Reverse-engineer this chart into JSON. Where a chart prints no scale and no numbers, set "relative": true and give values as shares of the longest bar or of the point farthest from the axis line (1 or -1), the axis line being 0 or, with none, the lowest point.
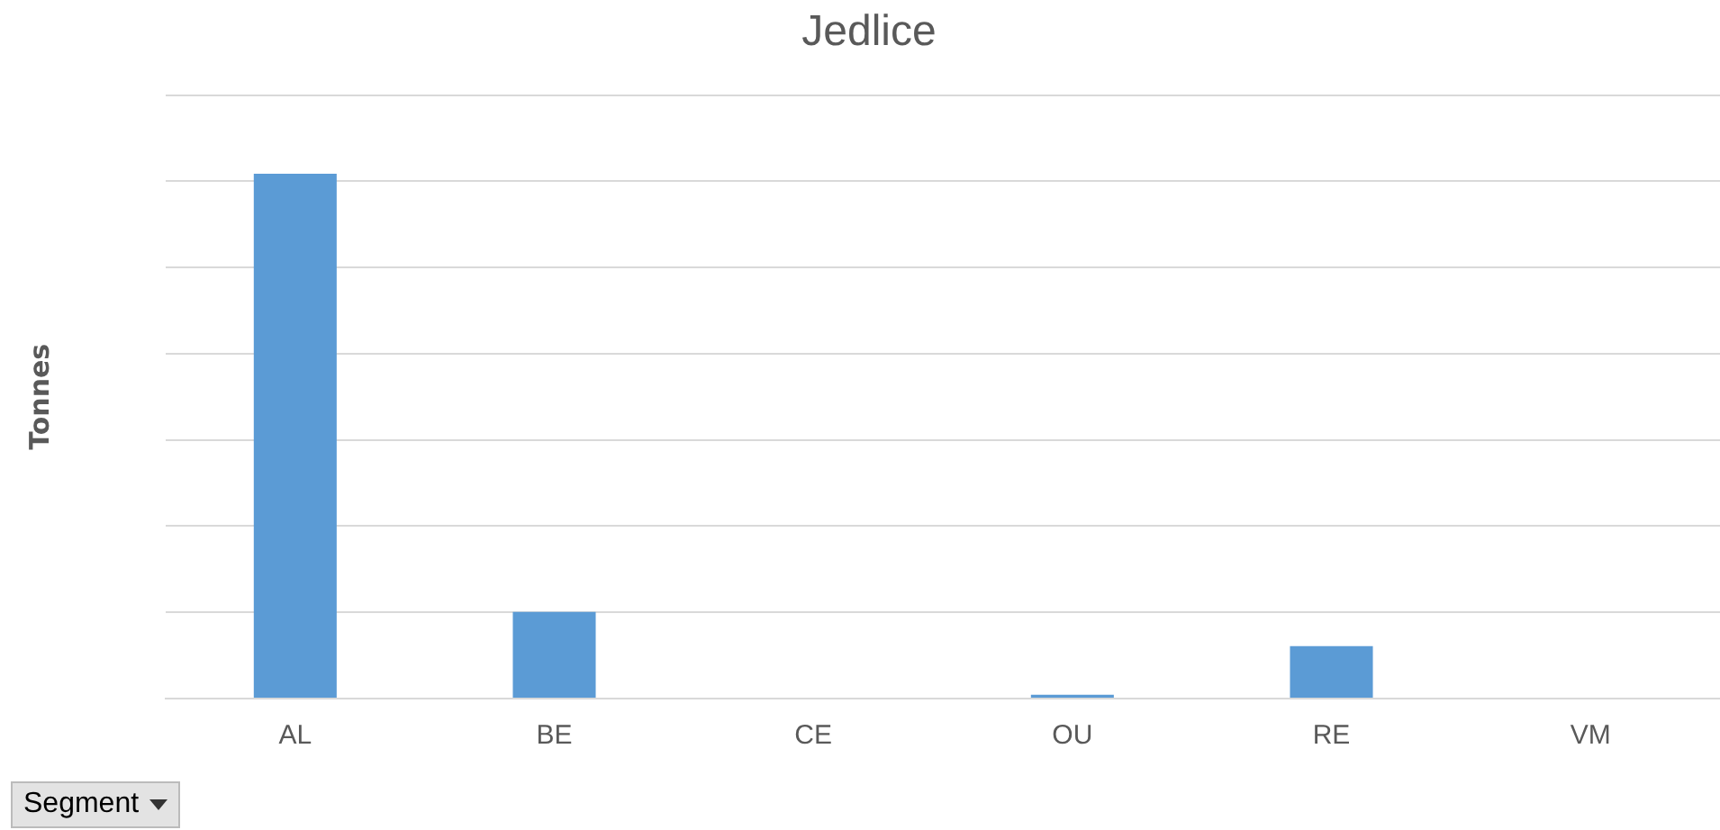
{
  "chart_data": {
    "type": "bar",
    "title": "Jedlice",
    "ylabel": "Tonnes",
    "categories": [
      "AL",
      "BE",
      "CE",
      "OU",
      "RE",
      "VM"
    ],
    "values": [
      1,
      0.165,
      0,
      0.0075,
      0.1,
      0
    ],
    "color": "#5b9bd5",
    "relative": true,
    "grid": "y",
    "legend": false,
    "annotations": [
      "Segment"
    ]
  }
}
